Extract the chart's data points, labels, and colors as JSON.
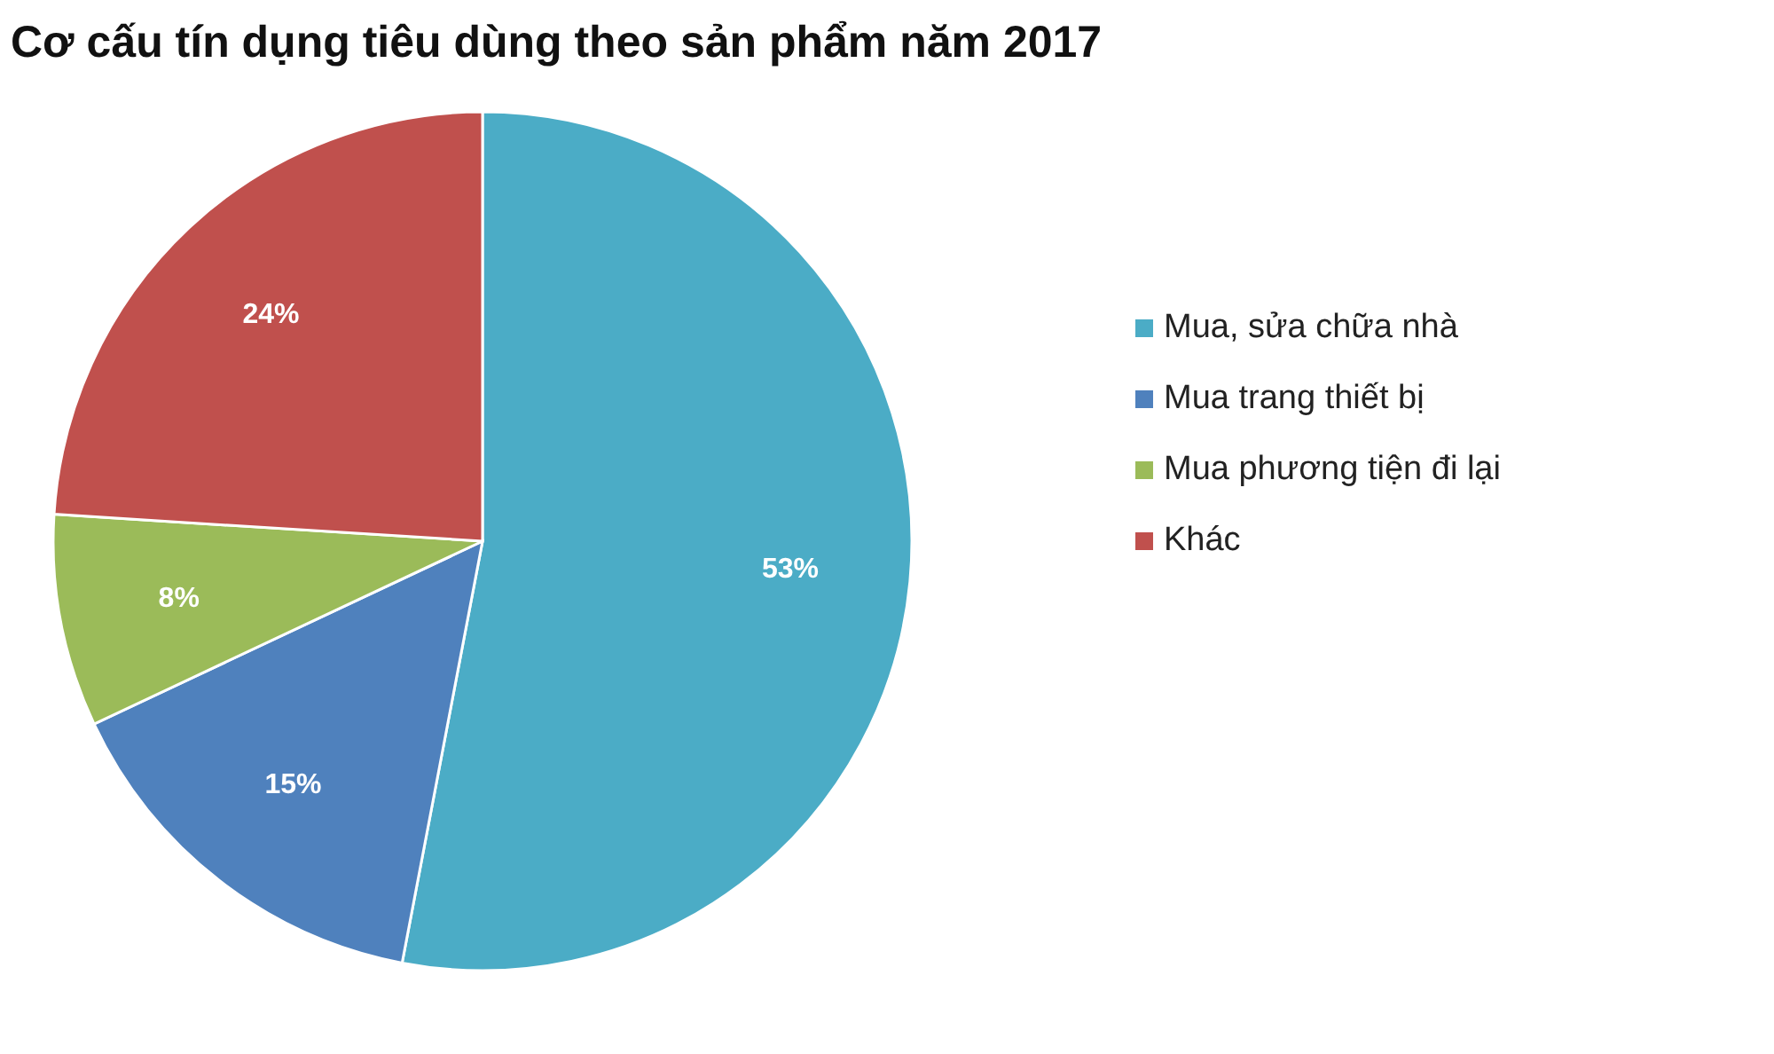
{
  "chart_data": {
    "type": "pie",
    "title": "Cơ cấu tín dụng tiêu dùng theo sản phẩm năm 2017",
    "categories": [
      "Mua, sửa chữa nhà",
      "Mua trang thiết bị",
      "Mua phương tiện đi lại",
      "Khác"
    ],
    "values": [
      53,
      15,
      8,
      24
    ],
    "colors": [
      "#4bacc6",
      "#4f81bd",
      "#9bbb59",
      "#c0504d"
    ],
    "value_labels": [
      "53%",
      "15%",
      "8%",
      "24%"
    ],
    "legend": "right"
  }
}
